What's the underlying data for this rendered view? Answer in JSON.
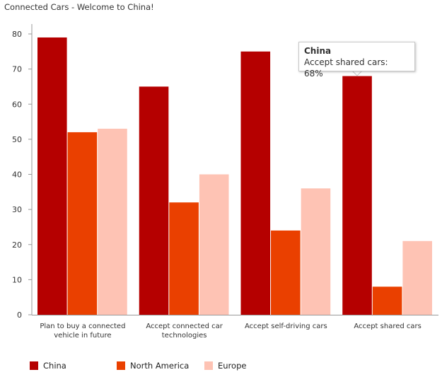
{
  "chart_data": {
    "type": "bar",
    "title": "Connected Cars - Welcome to China!",
    "categories": [
      [
        "Plan to buy a connected",
        "vehicle in future"
      ],
      [
        "Accept connected car",
        "technologies"
      ],
      [
        "Accept self-driving cars"
      ],
      [
        "Accept shared cars"
      ]
    ],
    "series": [
      {
        "name": "China",
        "color": "#b50000",
        "values": [
          79,
          65,
          75,
          68
        ]
      },
      {
        "name": "North America",
        "color": "#ea4000",
        "values": [
          52,
          32,
          24,
          8
        ]
      },
      {
        "name": "Europe",
        "color": "#fec3b4",
        "values": [
          53,
          40,
          36,
          21
        ]
      }
    ],
    "ylim": [
      0,
      80
    ],
    "yticks": [
      0,
      10,
      20,
      30,
      40,
      50,
      60,
      70,
      80
    ],
    "grid": false,
    "legend_position": "bottom-left",
    "tooltip": {
      "title": "China",
      "text": "Accept shared cars: 68%"
    }
  }
}
